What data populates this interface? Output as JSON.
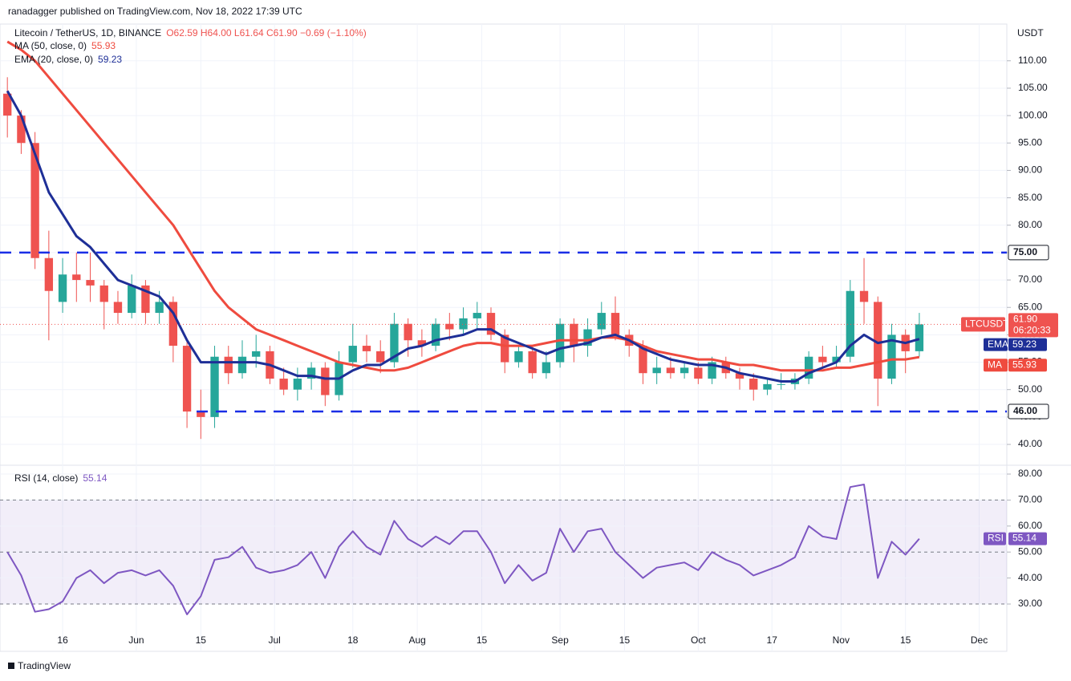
{
  "header": {
    "publisher": "ranadagger published on TradingView.com, Nov 18, 2022 17:39 UTC",
    "brand": "TradingView"
  },
  "chart_data": [
    {
      "type": "candlestick",
      "title": "Litecoin / TetherUS, 1D, BINANCE",
      "quote": "O62.59 H64.00 L61.64 C61.90 −0.69 (−1.10%)",
      "axis_label": "USDT",
      "symbol": "LTCUSDT",
      "last_label": "61.90",
      "countdown": "06:20:33",
      "x": [
        124,
        127,
        130,
        133,
        136,
        139,
        142,
        145,
        148,
        151,
        154,
        157,
        160,
        163,
        166,
        169,
        172,
        175,
        178,
        181,
        184,
        187,
        190,
        193,
        196,
        199,
        202,
        205,
        208,
        211,
        214,
        217,
        220,
        223,
        226,
        229,
        232,
        235,
        238,
        241,
        244,
        247,
        250,
        253,
        256,
        259,
        262,
        265,
        268,
        271,
        274,
        277,
        280,
        283,
        286,
        289,
        292,
        295,
        298,
        301,
        304,
        307,
        310,
        313,
        316,
        319,
        322
      ],
      "open": [
        104,
        100,
        95,
        74,
        66,
        71,
        70,
        69,
        66,
        64,
        69,
        64,
        66,
        58,
        46,
        45,
        56,
        53,
        56,
        57,
        52,
        50,
        52,
        54,
        49,
        55,
        58,
        57,
        55,
        62,
        59,
        58,
        62,
        61,
        63,
        64,
        60,
        55,
        57,
        53,
        55,
        62,
        58,
        61,
        64,
        60,
        58,
        53,
        54,
        53,
        54,
        52,
        55,
        53,
        52,
        50,
        51,
        51,
        52,
        56,
        55,
        56,
        68,
        66,
        52,
        60,
        57
      ],
      "high": [
        107,
        101,
        97,
        79,
        74,
        75,
        75,
        70,
        68,
        71,
        70,
        68,
        67,
        59,
        50,
        58,
        58,
        59,
        60,
        58,
        54,
        54,
        55,
        55,
        57,
        62,
        60,
        59,
        64,
        63,
        61,
        63,
        64,
        65,
        66,
        65,
        61,
        58,
        58,
        57,
        63,
        63,
        63,
        66,
        67,
        61,
        59,
        56,
        56,
        55,
        55,
        56,
        56,
        54,
        53,
        52,
        53,
        53,
        57,
        58,
        58,
        70,
        74,
        67,
        62,
        61,
        64
      ],
      "low": [
        96,
        93,
        72,
        59,
        64,
        66,
        66,
        61,
        62,
        63,
        62,
        62,
        55,
        43,
        41,
        43,
        51,
        52,
        54,
        51,
        49,
        48,
        50,
        47,
        48,
        54,
        55,
        53,
        54,
        56,
        56,
        57,
        59,
        60,
        61,
        59,
        53,
        54,
        52,
        52,
        54,
        55,
        56,
        60,
        59,
        56,
        51,
        51,
        52,
        52,
        51,
        51,
        52,
        50,
        48,
        49,
        50,
        50,
        51,
        54,
        54,
        55,
        62,
        47,
        51,
        53,
        56
      ],
      "close": [
        100,
        95,
        74,
        68,
        71,
        70,
        69,
        66,
        64,
        69,
        64,
        66,
        58,
        46,
        45,
        56,
        53,
        56,
        57,
        52,
        50,
        52,
        54,
        49,
        55,
        58,
        57,
        55,
        62,
        59,
        58,
        62,
        61,
        63,
        64,
        60,
        55,
        57,
        53,
        55,
        62,
        58,
        61,
        64,
        60,
        58,
        53,
        54,
        53,
        54,
        52,
        55,
        53,
        52,
        50,
        51,
        51,
        52,
        56,
        55,
        56,
        68,
        66,
        52,
        60,
        57,
        61.9
      ],
      "up_color": "#26a69a",
      "down_color": "#ef5350",
      "series": [
        {
          "name": "MA",
          "legend": "MA (50, close, 0)",
          "value_label": "55.93",
          "color": "#ef4b3f",
          "values": [
            113.5,
            112,
            110,
            107,
            104,
            101,
            98,
            95,
            92,
            89,
            86,
            83,
            80,
            76,
            72,
            68,
            65,
            63,
            61,
            60,
            59,
            58,
            57,
            56,
            55,
            54.5,
            54,
            53.5,
            53.5,
            54,
            55,
            56,
            57,
            58,
            58.5,
            58.5,
            58,
            58,
            58,
            58.5,
            59,
            59,
            59,
            59.5,
            59.5,
            59,
            58,
            57,
            56.5,
            56,
            55.5,
            55.5,
            55,
            54.5,
            54.5,
            54,
            53.5,
            53.5,
            53.5,
            53.5,
            54,
            54,
            54.5,
            55,
            55.5,
            55.5,
            55.93
          ]
        },
        {
          "name": "EMA",
          "legend": "EMA (20, close, 0)",
          "value_label": "59.23",
          "color": "#1e2f97",
          "values": [
            104.5,
            100,
            93,
            86,
            82,
            78,
            76,
            73,
            70,
            69,
            68,
            67,
            64,
            59,
            55,
            55,
            55,
            55,
            55,
            54.5,
            53.5,
            52.5,
            52.5,
            52,
            52,
            53.5,
            54.5,
            54.5,
            56,
            57.5,
            58,
            59,
            59.5,
            60,
            61,
            61,
            59.5,
            58.5,
            57.5,
            56.5,
            57.5,
            58,
            58.5,
            59.5,
            60,
            59,
            57.5,
            56.5,
            55.5,
            55,
            54.5,
            54.5,
            54,
            53,
            52.5,
            52,
            51.5,
            51.5,
            53,
            54,
            55,
            58,
            60,
            58.5,
            59,
            58.5,
            59.23
          ]
        }
      ],
      "levels": [
        {
          "value": 75,
          "label": "75.00"
        },
        {
          "value": 46,
          "label": "46.00"
        }
      ],
      "level_color": "#1a2ee6",
      "xlim": [
        122.4,
        341
      ],
      "ylim": [
        36.2,
        116.7
      ],
      "yticks": [
        {
          "value": 40,
          "label": "40.00"
        },
        {
          "value": 45,
          "label": "45.00"
        },
        {
          "value": 50,
          "label": "50.00"
        },
        {
          "value": 55,
          "label": "55.00"
        },
        {
          "value": 60,
          "label": "60.00"
        },
        {
          "value": 65,
          "label": "65.00"
        },
        {
          "value": 70,
          "label": "70.00"
        },
        {
          "value": 75,
          "label": "75.00"
        },
        {
          "value": 80,
          "label": "80.00"
        },
        {
          "value": 85,
          "label": "85.00"
        },
        {
          "value": 90,
          "label": "90.00"
        },
        {
          "value": 95,
          "label": "95.00"
        },
        {
          "value": 100,
          "label": "100.00"
        },
        {
          "value": 105,
          "label": "105.00"
        },
        {
          "value": 110,
          "label": "110.00"
        }
      ],
      "xticks": [
        {
          "value": 136,
          "label": "16"
        },
        {
          "value": 152,
          "label": "Jun"
        },
        {
          "value": 166,
          "label": "15"
        },
        {
          "value": 182,
          "label": "Jul"
        },
        {
          "value": 199,
          "label": "18"
        },
        {
          "value": 213,
          "label": "Aug"
        },
        {
          "value": 227,
          "label": "15"
        },
        {
          "value": 244,
          "label": "Sep"
        },
        {
          "value": 258,
          "label": "15"
        },
        {
          "value": 274,
          "label": "Oct"
        },
        {
          "value": 290,
          "label": "17"
        },
        {
          "value": 305,
          "label": "Nov"
        },
        {
          "value": 319,
          "label": "15"
        },
        {
          "value": 335,
          "label": "Dec"
        }
      ]
    },
    {
      "type": "line",
      "title": "RSI (14, close)",
      "name": "RSI",
      "value_label": "55.14",
      "color": "#7e57c2",
      "x": [
        124,
        127,
        130,
        133,
        136,
        139,
        142,
        145,
        148,
        151,
        154,
        157,
        160,
        163,
        166,
        169,
        172,
        175,
        178,
        181,
        184,
        187,
        190,
        193,
        196,
        199,
        202,
        205,
        208,
        211,
        214,
        217,
        220,
        223,
        226,
        229,
        232,
        235,
        238,
        241,
        244,
        247,
        250,
        253,
        256,
        259,
        262,
        265,
        268,
        271,
        274,
        277,
        280,
        283,
        286,
        289,
        292,
        295,
        298,
        301,
        304,
        307,
        310,
        313,
        316,
        319,
        322
      ],
      "values": [
        50,
        41,
        27,
        28,
        31,
        40,
        43,
        38,
        42,
        43,
        41,
        43,
        37,
        26,
        33,
        47,
        48,
        52,
        44,
        42,
        43,
        45,
        50,
        40,
        52,
        58,
        52,
        49,
        62,
        55,
        52,
        56,
        53,
        58,
        58,
        50,
        38,
        45,
        39,
        42,
        59,
        50,
        58,
        59,
        50,
        45,
        40,
        44,
        45,
        46,
        43,
        50,
        47,
        45,
        41,
        43,
        45,
        48,
        60,
        56,
        55,
        75,
        76,
        40,
        54,
        49,
        55.14
      ],
      "xlim": [
        122.4,
        341
      ],
      "ylim": [
        11.8,
        83.4
      ],
      "band": [
        30,
        70
      ],
      "midline": 50,
      "yticks": [
        {
          "value": 30,
          "label": "30.00"
        },
        {
          "value": 40,
          "label": "40.00"
        },
        {
          "value": 50,
          "label": "50.00"
        },
        {
          "value": 60,
          "label": "60.00"
        },
        {
          "value": 70,
          "label": "70.00"
        },
        {
          "value": 80,
          "label": "80.00"
        }
      ]
    }
  ]
}
